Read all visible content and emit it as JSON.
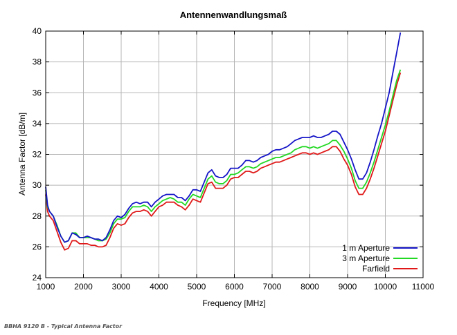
{
  "chart_data": {
    "type": "line",
    "title": "Antennenwandlungsmaß",
    "xlabel": "Frequency [MHz]",
    "ylabel": "Antenna Factor [dB/m]",
    "xlim": [
      1000,
      11000
    ],
    "ylim": [
      24,
      40
    ],
    "xticks": [
      1000,
      2000,
      3000,
      4000,
      5000,
      6000,
      7000,
      8000,
      9000,
      10000,
      11000
    ],
    "yticks": [
      24,
      26,
      28,
      30,
      32,
      34,
      36,
      38,
      40
    ],
    "grid": true,
    "legend_position": "bottom-right",
    "series": [
      {
        "name": "1 m Aperture",
        "color": "#1515c8",
        "x": [
          1000,
          1050,
          1100,
          1200,
          1300,
          1400,
          1500,
          1600,
          1700,
          1800,
          1900,
          2000,
          2100,
          2200,
          2300,
          2400,
          2500,
          2600,
          2700,
          2800,
          2900,
          3000,
          3100,
          3200,
          3300,
          3400,
          3500,
          3600,
          3700,
          3800,
          3900,
          4000,
          4100,
          4200,
          4300,
          4400,
          4500,
          4600,
          4700,
          4800,
          4900,
          5000,
          5100,
          5200,
          5300,
          5400,
          5500,
          5600,
          5700,
          5800,
          5900,
          6000,
          6100,
          6200,
          6300,
          6400,
          6500,
          6600,
          6700,
          6800,
          6900,
          7000,
          7100,
          7200,
          7300,
          7400,
          7500,
          7600,
          7700,
          7800,
          7900,
          8000,
          8100,
          8200,
          8300,
          8400,
          8500,
          8600,
          8700,
          8800,
          8900,
          9000,
          9100,
          9200,
          9300,
          9400,
          9500,
          9600,
          9700,
          9800,
          9900,
          10000,
          10100,
          10200,
          10300,
          10400
        ],
        "values": [
          29.9,
          28.7,
          28.3,
          28.0,
          27.3,
          26.7,
          26.3,
          26.4,
          26.9,
          26.8,
          26.6,
          26.6,
          26.7,
          26.6,
          26.5,
          26.5,
          26.4,
          26.6,
          27.1,
          27.7,
          28.0,
          27.9,
          28.1,
          28.5,
          28.8,
          28.9,
          28.8,
          28.9,
          28.9,
          28.6,
          28.9,
          29.1,
          29.3,
          29.4,
          29.4,
          29.4,
          29.2,
          29.2,
          29.0,
          29.3,
          29.7,
          29.7,
          29.6,
          30.2,
          30.8,
          31.0,
          30.6,
          30.5,
          30.5,
          30.7,
          31.1,
          31.1,
          31.1,
          31.3,
          31.6,
          31.6,
          31.5,
          31.6,
          31.8,
          31.9,
          32.0,
          32.2,
          32.3,
          32.3,
          32.4,
          32.5,
          32.7,
          32.9,
          33.0,
          33.1,
          33.1,
          33.1,
          33.2,
          33.1,
          33.1,
          33.2,
          33.3,
          33.5,
          33.5,
          33.3,
          32.8,
          32.3,
          31.7,
          31.0,
          30.4,
          30.4,
          30.8,
          31.5,
          32.3,
          33.2,
          34.0,
          35.0,
          36.0,
          37.3,
          38.6,
          39.9
        ]
      },
      {
        "name": "3 m Aperture",
        "color": "#22d822",
        "x": [
          1000,
          1050,
          1100,
          1200,
          1300,
          1400,
          1500,
          1600,
          1700,
          1800,
          1900,
          2000,
          2100,
          2200,
          2300,
          2400,
          2500,
          2600,
          2700,
          2800,
          2900,
          3000,
          3100,
          3200,
          3300,
          3400,
          3500,
          3600,
          3700,
          3800,
          3900,
          4000,
          4100,
          4200,
          4300,
          4400,
          4500,
          4600,
          4700,
          4800,
          4900,
          5000,
          5100,
          5200,
          5300,
          5400,
          5500,
          5600,
          5700,
          5800,
          5900,
          6000,
          6100,
          6200,
          6300,
          6400,
          6500,
          6600,
          6700,
          6800,
          6900,
          7000,
          7100,
          7200,
          7300,
          7400,
          7500,
          7600,
          7700,
          7800,
          7900,
          8000,
          8100,
          8200,
          8300,
          8400,
          8500,
          8600,
          8700,
          8800,
          8900,
          9000,
          9100,
          9200,
          9300,
          9400,
          9500,
          9600,
          9700,
          9800,
          9900,
          10000,
          10100,
          10200,
          10300,
          10400
        ],
        "values": [
          29.7,
          28.6,
          28.3,
          28.0,
          27.4,
          26.7,
          26.3,
          26.4,
          26.9,
          26.9,
          26.6,
          26.6,
          26.6,
          26.6,
          26.5,
          26.4,
          26.4,
          26.5,
          26.9,
          27.5,
          27.8,
          27.8,
          27.9,
          28.3,
          28.6,
          28.6,
          28.6,
          28.7,
          28.6,
          28.3,
          28.6,
          28.8,
          29.0,
          29.1,
          29.2,
          29.1,
          28.9,
          28.9,
          28.7,
          29.1,
          29.4,
          29.3,
          29.2,
          29.8,
          30.4,
          30.6,
          30.2,
          30.1,
          30.1,
          30.3,
          30.7,
          30.7,
          30.8,
          31.0,
          31.2,
          31.2,
          31.1,
          31.2,
          31.4,
          31.5,
          31.6,
          31.7,
          31.8,
          31.8,
          31.9,
          32.0,
          32.1,
          32.3,
          32.4,
          32.5,
          32.5,
          32.4,
          32.5,
          32.4,
          32.5,
          32.6,
          32.7,
          32.9,
          32.9,
          32.6,
          32.2,
          31.7,
          31.1,
          30.3,
          29.8,
          29.8,
          30.2,
          30.8,
          31.5,
          32.3,
          33.1,
          33.9,
          34.8,
          35.8,
          36.8,
          37.5
        ]
      },
      {
        "name": "Farfield",
        "color": "#e01818",
        "x": [
          1000,
          1050,
          1100,
          1200,
          1300,
          1400,
          1500,
          1600,
          1700,
          1800,
          1900,
          2000,
          2100,
          2200,
          2300,
          2400,
          2500,
          2600,
          2700,
          2800,
          2900,
          3000,
          3100,
          3200,
          3300,
          3400,
          3500,
          3600,
          3700,
          3800,
          3900,
          4000,
          4100,
          4200,
          4300,
          4400,
          4500,
          4600,
          4700,
          4800,
          4900,
          5000,
          5100,
          5200,
          5300,
          5400,
          5500,
          5600,
          5700,
          5800,
          5900,
          6000,
          6100,
          6200,
          6300,
          6400,
          6500,
          6600,
          6700,
          6800,
          6900,
          7000,
          7100,
          7200,
          7300,
          7400,
          7500,
          7600,
          7700,
          7800,
          7900,
          8000,
          8100,
          8200,
          8300,
          8400,
          8500,
          8600,
          8700,
          8800,
          8900,
          9000,
          9100,
          9200,
          9300,
          9400,
          9500,
          9600,
          9700,
          9800,
          9900,
          10000,
          10100,
          10200,
          10300,
          10400
        ],
        "values": [
          29.4,
          28.3,
          28.0,
          27.7,
          27.0,
          26.3,
          25.8,
          25.9,
          26.4,
          26.4,
          26.2,
          26.2,
          26.2,
          26.1,
          26.1,
          26.0,
          26.0,
          26.1,
          26.6,
          27.2,
          27.5,
          27.4,
          27.5,
          27.9,
          28.2,
          28.3,
          28.3,
          28.4,
          28.3,
          28.0,
          28.3,
          28.6,
          28.7,
          28.9,
          28.9,
          28.9,
          28.7,
          28.6,
          28.4,
          28.7,
          29.1,
          29.0,
          28.9,
          29.5,
          30.1,
          30.2,
          29.8,
          29.8,
          29.8,
          30.0,
          30.4,
          30.5,
          30.5,
          30.7,
          30.9,
          30.9,
          30.8,
          30.9,
          31.1,
          31.2,
          31.3,
          31.4,
          31.5,
          31.5,
          31.6,
          31.7,
          31.8,
          31.9,
          32.0,
          32.1,
          32.1,
          32.0,
          32.1,
          32.0,
          32.1,
          32.2,
          32.3,
          32.5,
          32.5,
          32.2,
          31.7,
          31.3,
          30.7,
          29.9,
          29.4,
          29.4,
          29.8,
          30.4,
          31.1,
          31.9,
          32.7,
          33.5,
          34.5,
          35.5,
          36.5,
          37.3
        ]
      }
    ]
  },
  "caption": "BBHA 9120 B - Typical Antenna Factor"
}
